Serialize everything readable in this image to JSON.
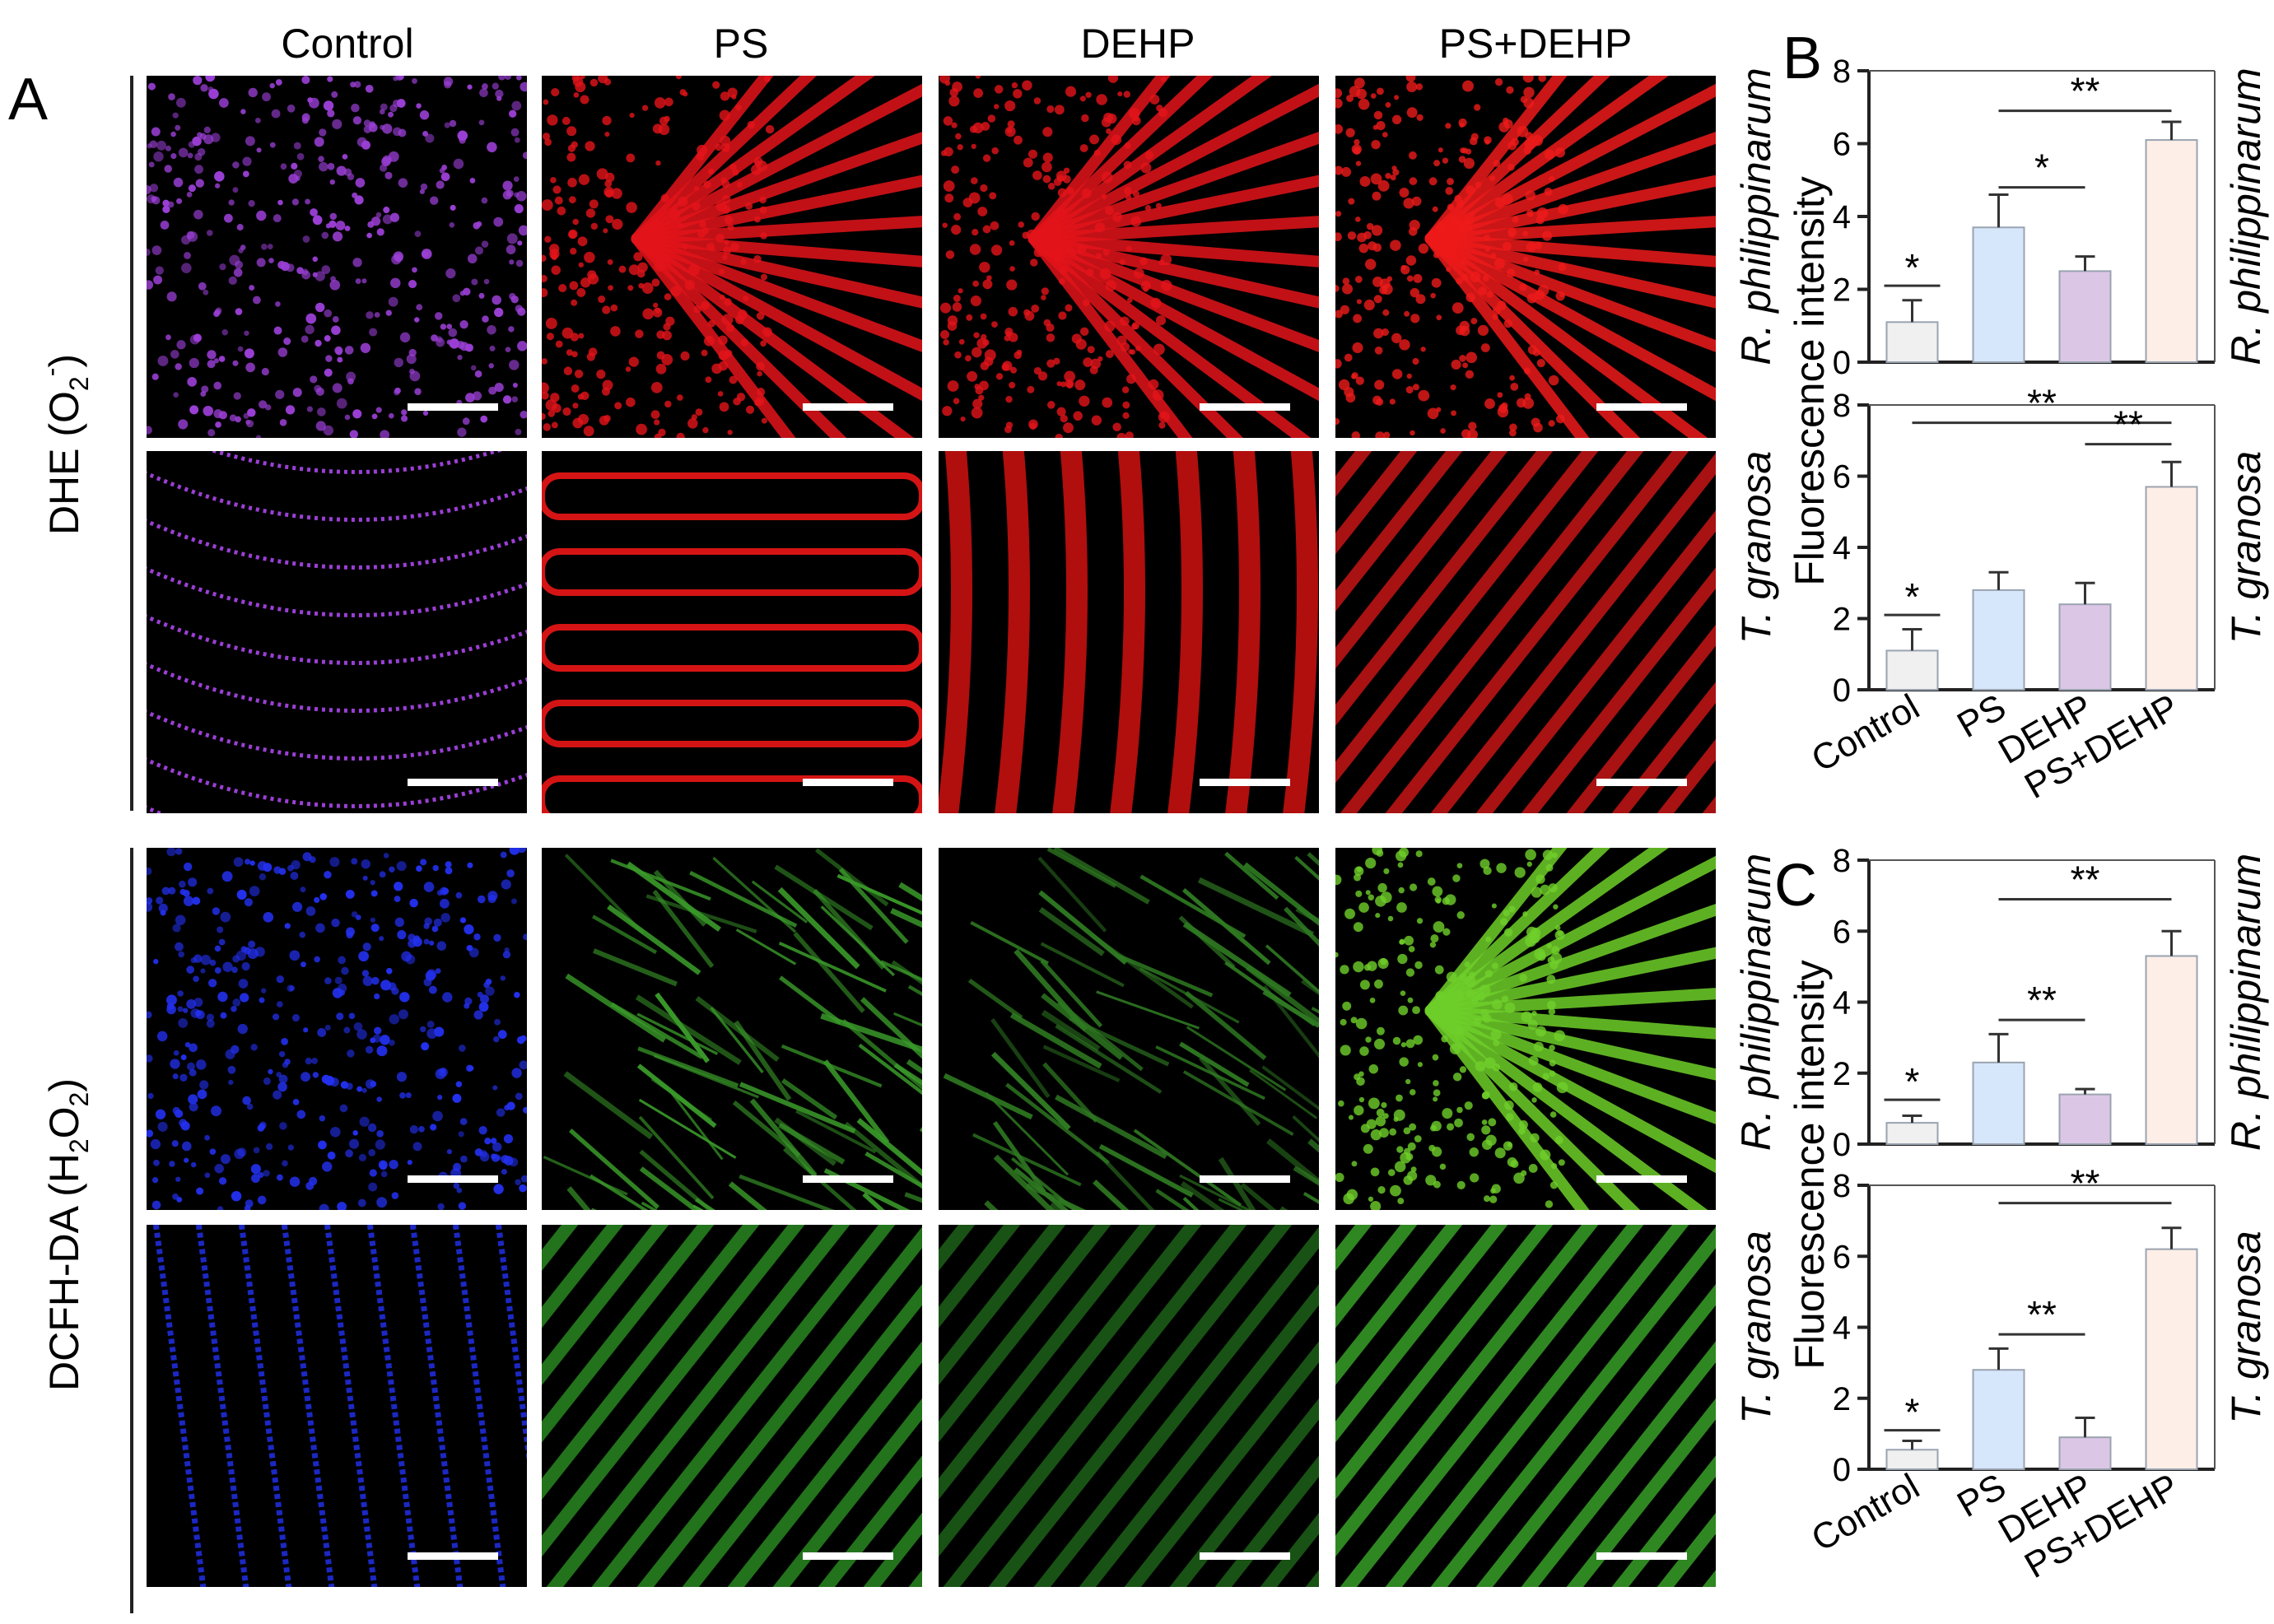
{
  "figure": {
    "panel_letters": [
      "A",
      "B",
      "C"
    ],
    "columns": [
      "Control",
      "PS",
      "DEHP",
      "PS+DEHP"
    ],
    "row_labels": {
      "dhe": {
        "main": "DHE (O",
        "sub": "2",
        "sup": "-",
        "end": ")"
      },
      "dcfh": {
        "main": "DCFH-DA (H",
        "sub1": "2",
        "mid": "O",
        "sub2": "2",
        "end": ")"
      }
    },
    "micrographs": [
      {
        "row": 0,
        "col": 0,
        "stain": "DHE",
        "species": "R. philippinarum",
        "color": "#9b3fd6",
        "pattern": "dots"
      },
      {
        "row": 0,
        "col": 1,
        "stain": "DHE",
        "species": "R. philippinarum",
        "color": "#e3141a",
        "pattern": "fan"
      },
      {
        "row": 0,
        "col": 2,
        "stain": "DHE",
        "species": "R. philippinarum",
        "color": "#e3141a",
        "pattern": "fan"
      },
      {
        "row": 0,
        "col": 3,
        "stain": "DHE",
        "species": "R. philippinarum",
        "color": "#ee1a1a",
        "pattern": "fan"
      },
      {
        "row": 1,
        "col": 0,
        "stain": "DHE",
        "species": "T. granosa",
        "color": "#9b3fd6",
        "pattern": "curves"
      },
      {
        "row": 1,
        "col": 1,
        "stain": "DHE",
        "species": "T. granosa",
        "color": "#d41414",
        "pattern": "hbands"
      },
      {
        "row": 1,
        "col": 2,
        "stain": "DHE",
        "species": "T. granosa",
        "color": "#d01010",
        "pattern": "vbands"
      },
      {
        "row": 1,
        "col": 3,
        "stain": "DHE",
        "species": "T. granosa",
        "color": "#e01818",
        "pattern": "diag"
      },
      {
        "row": 2,
        "col": 0,
        "stain": "DCFH-DA",
        "species": "R. philippinarum",
        "color": "#2330ee",
        "pattern": "dots"
      },
      {
        "row": 2,
        "col": 1,
        "stain": "DCFH-DA",
        "species": "R. philippinarum",
        "color": "#3a9a2a",
        "pattern": "fibers"
      },
      {
        "row": 2,
        "col": 2,
        "stain": "DCFH-DA",
        "species": "R. philippinarum",
        "color": "#2f7a22",
        "pattern": "fibers"
      },
      {
        "row": 2,
        "col": 3,
        "stain": "DCFH-DA",
        "species": "R. philippinarum",
        "color": "#6fcf2a",
        "pattern": "fan"
      },
      {
        "row": 3,
        "col": 0,
        "stain": "DCFH-DA",
        "species": "T. granosa",
        "color": "#1f2cd8",
        "pattern": "vstripes"
      },
      {
        "row": 3,
        "col": 1,
        "stain": "DCFH-DA",
        "species": "T. granosa",
        "color": "#2e9a25",
        "pattern": "diag"
      },
      {
        "row": 3,
        "col": 2,
        "stain": "DCFH-DA",
        "species": "T. granosa",
        "color": "#226e1c",
        "pattern": "diag"
      },
      {
        "row": 3,
        "col": 3,
        "stain": "DCFH-DA",
        "species": "T. granosa",
        "color": "#3fb52c",
        "pattern": "diag"
      }
    ]
  },
  "chart_data": [
    {
      "type": "bar",
      "panel": "B",
      "species": "R. philippinarum",
      "ylabel": "Fluorescence intensity",
      "categories": [
        "Control",
        "PS",
        "DEHP",
        "PS+DEHP"
      ],
      "values": [
        1.1,
        3.7,
        2.5,
        6.1
      ],
      "errors": [
        0.6,
        0.9,
        0.4,
        0.5
      ],
      "colors": [
        "#f0f0f0",
        "#d6e6fb",
        "#dcc6e6",
        "#fdeee7"
      ],
      "ylim": [
        0,
        8
      ],
      "yticks": [
        0,
        2,
        4,
        6,
        8
      ],
      "significance": [
        {
          "label": "*",
          "type": "cap",
          "cat": 0,
          "y": 2.1
        },
        {
          "label": "*",
          "from": 1,
          "to": 2,
          "y": 4.8
        },
        {
          "label": "**",
          "from": 1,
          "to": 3,
          "y": 6.9
        }
      ]
    },
    {
      "type": "bar",
      "panel": "B",
      "species": "T. granosa",
      "ylabel": "Fluorescence intensity",
      "categories": [
        "Control",
        "PS",
        "DEHP",
        "PS+DEHP"
      ],
      "values": [
        1.1,
        2.8,
        2.4,
        5.7
      ],
      "errors": [
        0.6,
        0.5,
        0.6,
        0.7
      ],
      "colors": [
        "#f0f0f0",
        "#d6e6fb",
        "#dcc6e6",
        "#fdeee7"
      ],
      "ylim": [
        0,
        8
      ],
      "yticks": [
        0,
        2,
        4,
        6,
        8
      ],
      "significance": [
        {
          "label": "*",
          "type": "cap",
          "cat": 0,
          "y": 2.1
        },
        {
          "label": "**",
          "from": 0,
          "to": 3,
          "y": 7.5
        },
        {
          "label": "**",
          "from": 2,
          "to": 3,
          "y": 6.9
        }
      ]
    },
    {
      "type": "bar",
      "panel": "C",
      "species": "R. philippinarum",
      "ylabel": "Fluorescence intensity",
      "categories": [
        "Control",
        "PS",
        "DEHP",
        "PS+DEHP"
      ],
      "values": [
        0.6,
        2.3,
        1.4,
        5.3
      ],
      "errors": [
        0.2,
        0.8,
        0.15,
        0.7
      ],
      "colors": [
        "#f0f0f0",
        "#d6e6fb",
        "#dcc6e6",
        "#fdeee7"
      ],
      "ylim": [
        0,
        8
      ],
      "yticks": [
        0,
        2,
        4,
        6,
        8
      ],
      "significance": [
        {
          "label": "*",
          "type": "cap",
          "cat": 0,
          "y": 1.25
        },
        {
          "label": "**",
          "from": 1,
          "to": 2,
          "y": 3.5
        },
        {
          "label": "**",
          "from": 1,
          "to": 3,
          "y": 6.9
        }
      ]
    },
    {
      "type": "bar",
      "panel": "C",
      "species": "T. granosa",
      "ylabel": "Fluorescence intensity",
      "categories": [
        "Control",
        "PS",
        "DEHP",
        "PS+DEHP"
      ],
      "values": [
        0.55,
        2.8,
        0.9,
        6.2
      ],
      "errors": [
        0.25,
        0.6,
        0.55,
        0.6
      ],
      "colors": [
        "#f0f0f0",
        "#d6e6fb",
        "#dcc6e6",
        "#fdeee7"
      ],
      "ylim": [
        0,
        8
      ],
      "yticks": [
        0,
        2,
        4,
        6,
        8
      ],
      "significance": [
        {
          "label": "*",
          "type": "cap",
          "cat": 0,
          "y": 1.1
        },
        {
          "label": "**",
          "from": 1,
          "to": 2,
          "y": 3.8
        },
        {
          "label": "**",
          "from": 1,
          "to": 3,
          "y": 7.5
        }
      ]
    }
  ]
}
